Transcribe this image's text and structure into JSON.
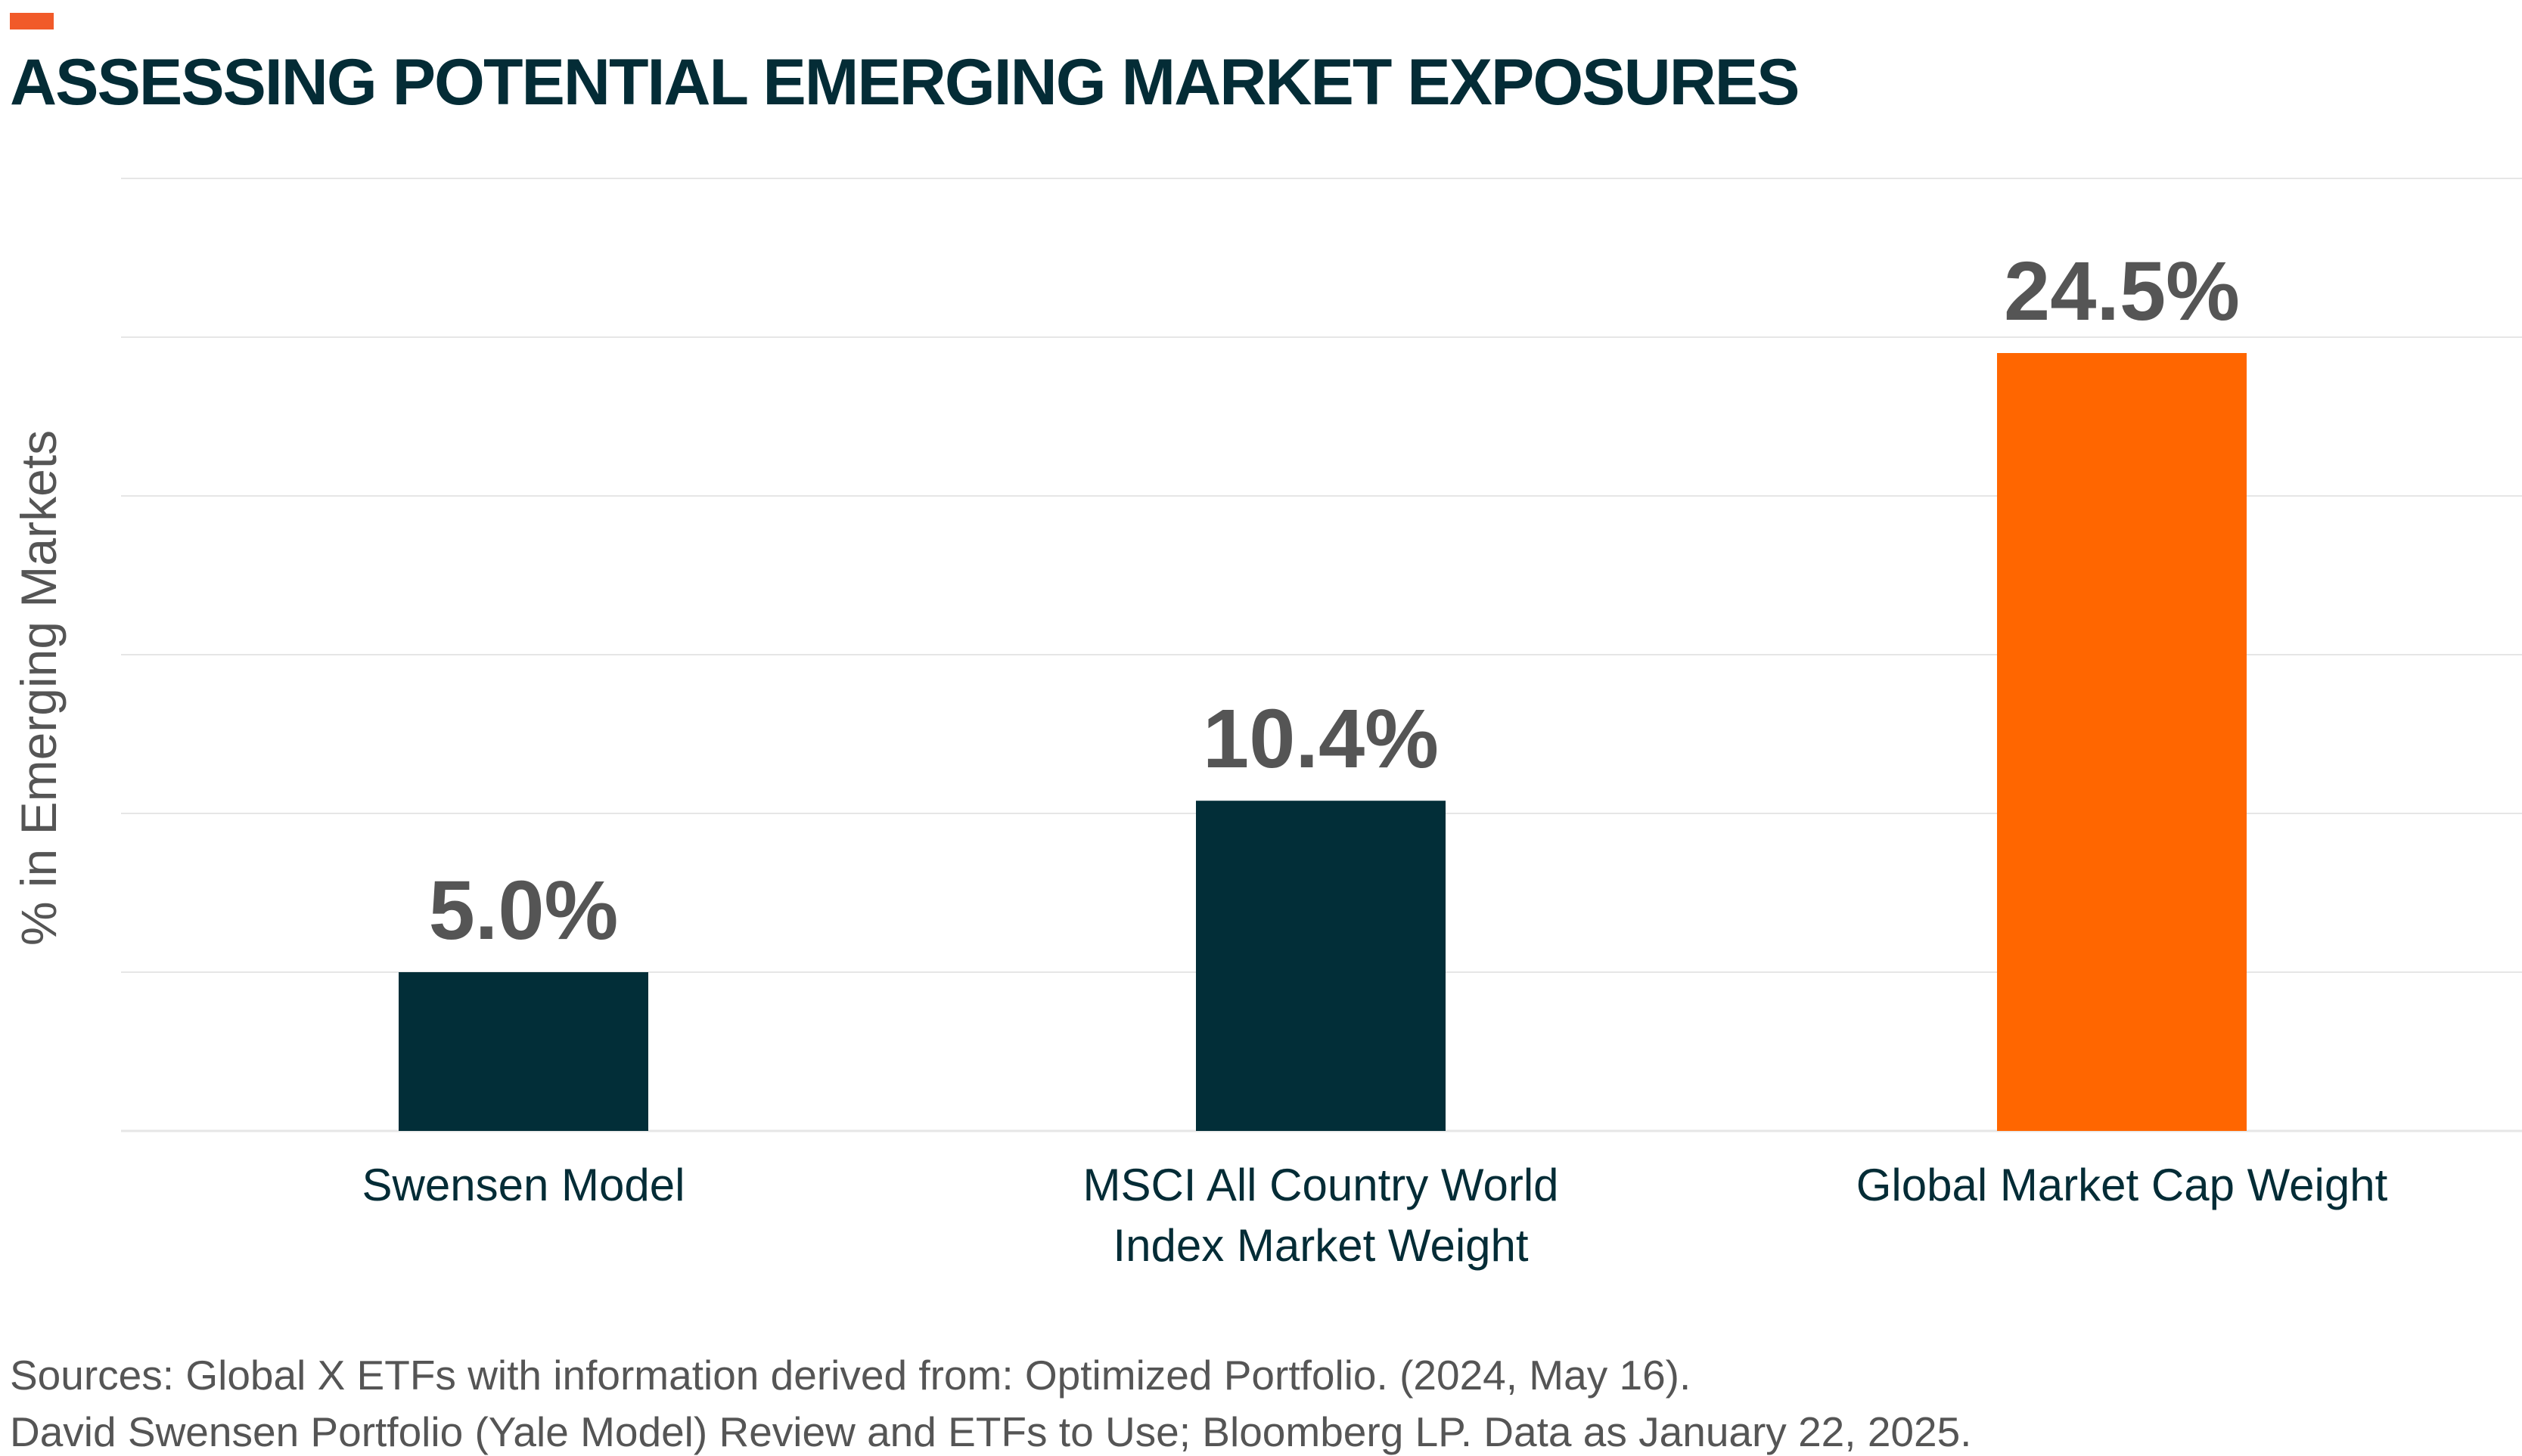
{
  "header": {
    "title": "ASSESSING POTENTIAL EMERGING MARKET EXPOSURES"
  },
  "chart_data": {
    "type": "bar",
    "title": "ASSESSING POTENTIAL EMERGING MARKET EXPOSURES",
    "ylabel": "% in Emerging Markets",
    "xlabel": "",
    "categories": [
      "Swensen Model",
      "MSCI All Country World Index Market Weight",
      "Global Market Cap Weight"
    ],
    "category_lines": [
      [
        "Swensen Model"
      ],
      [
        "MSCI All Country World",
        "Index Market Weight"
      ],
      [
        "Global Market Cap Weight"
      ]
    ],
    "values": [
      5.0,
      10.4,
      24.5
    ],
    "data_labels": [
      "5.0%",
      "10.4%",
      "24.5%"
    ],
    "bar_colors": [
      "#022e38",
      "#022e38",
      "#ff6600"
    ],
    "ylim": [
      0,
      30
    ],
    "gridlines": [
      0,
      5,
      10,
      15,
      20,
      25,
      30
    ],
    "grid": true,
    "legend": "none"
  },
  "footer": {
    "source_line_1": "Sources: Global X ETFs with information derived from: Optimized Portfolio. (2024, May 16).",
    "source_line_2": "David Swensen Portfolio (Yale Model) Review and ETFs to Use; Bloomberg LP. Data as January 22, 2025."
  },
  "colors": {
    "accent": "#f15a29",
    "title": "#042c36",
    "gridline": "#e6e6e6",
    "axis_text": "#042c36",
    "data_label": "#555555",
    "source_text": "#555555"
  }
}
